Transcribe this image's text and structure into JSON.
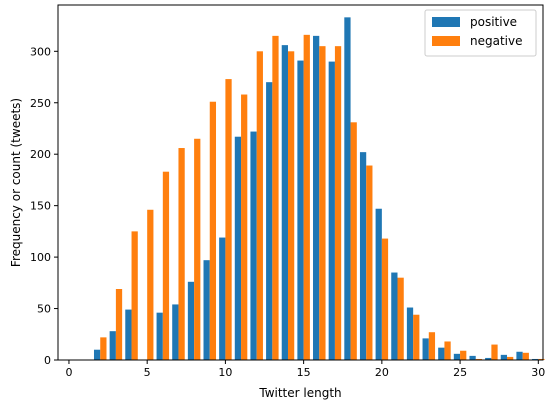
{
  "chart_data": {
    "type": "bar",
    "xlabel": "Twitter length",
    "ylabel": "Frequency or count (tweets)",
    "xlim": [
      -0.7,
      30.3
    ],
    "ylim": [
      0,
      345
    ],
    "xticks": [
      0,
      5,
      10,
      15,
      20,
      25,
      30
    ],
    "yticks": [
      0,
      50,
      100,
      150,
      200,
      250,
      300
    ],
    "grid": false,
    "legend_position": "upper right",
    "series": [
      {
        "name": "positive",
        "color": "#1f77b4",
        "points": [
          {
            "x": 2,
            "y": 10
          },
          {
            "x": 3,
            "y": 28
          },
          {
            "x": 4,
            "y": 49
          },
          {
            "x": 6,
            "y": 46
          },
          {
            "x": 7,
            "y": 54
          },
          {
            "x": 8,
            "y": 76
          },
          {
            "x": 9,
            "y": 97
          },
          {
            "x": 10,
            "y": 119
          },
          {
            "x": 11,
            "y": 217
          },
          {
            "x": 12,
            "y": 222
          },
          {
            "x": 13,
            "y": 270
          },
          {
            "x": 14,
            "y": 306
          },
          {
            "x": 15,
            "y": 291
          },
          {
            "x": 16,
            "y": 315
          },
          {
            "x": 17,
            "y": 290
          },
          {
            "x": 18,
            "y": 333
          },
          {
            "x": 19,
            "y": 202
          },
          {
            "x": 20,
            "y": 147
          },
          {
            "x": 21,
            "y": 85
          },
          {
            "x": 22,
            "y": 51
          },
          {
            "x": 23,
            "y": 21
          },
          {
            "x": 24,
            "y": 12
          },
          {
            "x": 25,
            "y": 6
          },
          {
            "x": 26,
            "y": 4
          },
          {
            "x": 27,
            "y": 2
          },
          {
            "x": 28,
            "y": 5
          },
          {
            "x": 29,
            "y": 8
          },
          {
            "x": 30,
            "y": 1
          }
        ]
      },
      {
        "name": "negative",
        "color": "#ff7f0e",
        "points": [
          {
            "x": 2,
            "y": 22
          },
          {
            "x": 3,
            "y": 69
          },
          {
            "x": 4,
            "y": 125
          },
          {
            "x": 5,
            "y": 146
          },
          {
            "x": 6,
            "y": 183
          },
          {
            "x": 7,
            "y": 206
          },
          {
            "x": 8,
            "y": 215
          },
          {
            "x": 9,
            "y": 251
          },
          {
            "x": 10,
            "y": 273
          },
          {
            "x": 11,
            "y": 258
          },
          {
            "x": 12,
            "y": 300
          },
          {
            "x": 13,
            "y": 315
          },
          {
            "x": 14,
            "y": 300
          },
          {
            "x": 15,
            "y": 316
          },
          {
            "x": 16,
            "y": 305
          },
          {
            "x": 17,
            "y": 305
          },
          {
            "x": 18,
            "y": 231
          },
          {
            "x": 19,
            "y": 189
          },
          {
            "x": 20,
            "y": 118
          },
          {
            "x": 21,
            "y": 80
          },
          {
            "x": 22,
            "y": 44
          },
          {
            "x": 23,
            "y": 27
          },
          {
            "x": 24,
            "y": 18
          },
          {
            "x": 25,
            "y": 9
          },
          {
            "x": 26,
            "y": 1
          },
          {
            "x": 27,
            "y": 15
          },
          {
            "x": 28,
            "y": 3
          },
          {
            "x": 29,
            "y": 7
          },
          {
            "x": 30,
            "y": 1
          }
        ]
      }
    ]
  }
}
